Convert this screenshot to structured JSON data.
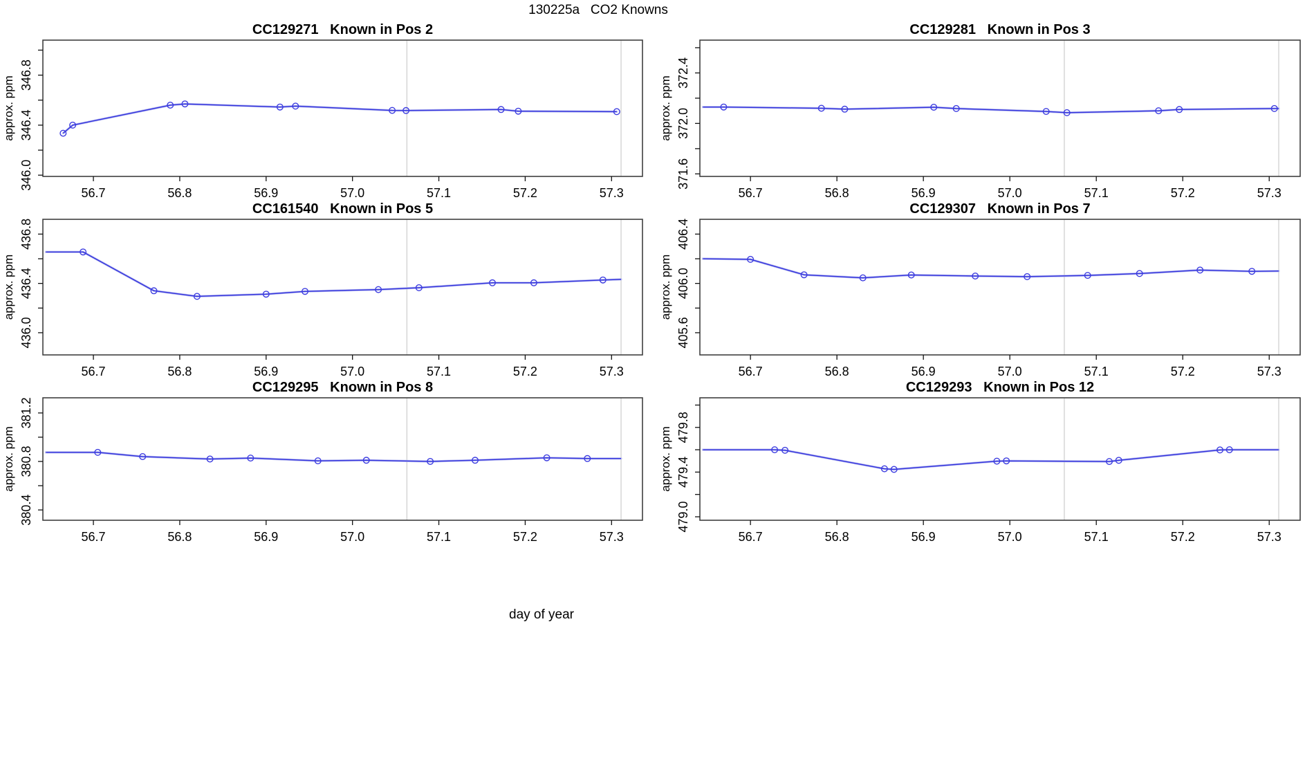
{
  "page": {
    "main_title": "130225a   CO2 Knowns",
    "x_axis_label": "day of year",
    "background": "#ffffff"
  },
  "colors": {
    "line": "#3434dd",
    "line_halo": "#b9bdf0",
    "marker": "#3c3ce0",
    "reference_line": "#d6d6d6",
    "box": "#3f3f3f",
    "tick": "#111111",
    "text": "#000000"
  },
  "chart_data": {
    "type": "line",
    "x_axis_label": "day of year",
    "x_lim": [
      56.6415,
      57.3358
    ],
    "x_ticks": [
      56.7,
      56.8,
      56.9,
      57.0,
      57.1,
      57.2,
      57.3
    ],
    "x_tick_labels": [
      "56.7",
      "56.8",
      "56.9",
      "57.0",
      "57.1",
      "57.2",
      "57.3"
    ],
    "vlines": [
      57.063,
      57.311
    ],
    "grid": "off",
    "legend": "none",
    "marker_style": "open-circle",
    "plots": [
      {
        "title": "CC129271   Known in Pos 2",
        "ylabel": "approx. ppm",
        "ylim": [
          345.99,
          347.08
        ],
        "yticks": [
          346.0,
          346.2,
          346.4,
          346.6,
          346.8,
          347.0
        ],
        "ytick_labeled_values": [
          346.0,
          346.4,
          346.8
        ],
        "ytick_labels": [
          "346.0",
          "346.4",
          "346.8"
        ],
        "x": [
          56.665,
          56.676,
          56.789,
          56.806,
          56.916,
          56.934,
          57.046,
          57.062,
          57.172,
          57.192,
          57.306
        ],
        "y": [
          346.335,
          346.4,
          346.56,
          346.57,
          346.545,
          346.552,
          346.518,
          346.517,
          346.525,
          346.512,
          346.508
        ],
        "line_x": [
          56.665,
          56.676,
          56.789,
          56.806,
          56.916,
          56.934,
          57.046,
          57.062,
          57.172,
          57.192,
          57.306
        ],
        "line_y": [
          346.335,
          346.4,
          346.56,
          346.57,
          346.545,
          346.552,
          346.518,
          346.517,
          346.525,
          346.512,
          346.508
        ]
      },
      {
        "title": "CC129281   Known in Pos 3",
        "ylabel": "approx. ppm",
        "ylim": [
          371.58,
          372.66
        ],
        "yticks": [
          371.6,
          371.8,
          372.0,
          372.2,
          372.4,
          372.6
        ],
        "ytick_labeled_values": [
          371.6,
          372.0,
          372.4
        ],
        "ytick_labels": [
          "371.6",
          "372.0",
          "372.4"
        ],
        "x": [
          56.669,
          56.782,
          56.809,
          56.912,
          56.938,
          57.042,
          57.066,
          57.172,
          57.196,
          57.306
        ],
        "y": [
          372.13,
          372.12,
          372.113,
          372.128,
          372.118,
          372.095,
          372.085,
          372.1,
          372.11,
          372.118
        ],
        "line_x": [
          56.645,
          56.669,
          56.782,
          56.809,
          56.912,
          56.938,
          57.042,
          57.066,
          57.172,
          57.196,
          57.306,
          57.311
        ],
        "line_y": [
          372.13,
          372.13,
          372.12,
          372.113,
          372.128,
          372.118,
          372.095,
          372.085,
          372.1,
          372.11,
          372.118,
          372.118
        ]
      },
      {
        "title": "CC161540   Known in Pos 5",
        "ylabel": "approx. ppm",
        "ylim": [
          435.82,
          436.92
        ],
        "yticks": [
          436.0,
          436.2,
          436.4,
          436.6,
          436.8
        ],
        "ytick_labeled_values": [
          436.0,
          436.4,
          436.8
        ],
        "ytick_labels": [
          "436.0",
          "436.4",
          "436.8"
        ],
        "x": [
          56.688,
          56.77,
          56.82,
          56.9,
          56.945,
          57.03,
          57.077,
          57.162,
          57.21,
          57.29
        ],
        "y": [
          436.655,
          436.34,
          436.295,
          436.313,
          436.335,
          436.35,
          436.365,
          436.405,
          436.405,
          436.428
        ],
        "line_x": [
          56.645,
          56.688,
          56.77,
          56.82,
          56.9,
          56.945,
          57.03,
          57.077,
          57.162,
          57.21,
          57.29,
          57.311
        ],
        "line_y": [
          436.655,
          436.655,
          436.34,
          436.295,
          436.313,
          436.335,
          436.35,
          436.365,
          436.405,
          436.405,
          436.428,
          436.433
        ]
      },
      {
        "title": "CC129307   Known in Pos 7",
        "ylabel": "approx. ppm",
        "ylim": [
          405.42,
          406.52
        ],
        "yticks": [
          405.6,
          405.8,
          406.0,
          406.2,
          406.4
        ],
        "ytick_labeled_values": [
          405.6,
          406.0,
          406.4
        ],
        "ytick_labels": [
          "405.6",
          "406.0",
          "406.4"
        ],
        "x": [
          56.7,
          56.762,
          56.83,
          56.886,
          56.96,
          57.02,
          57.09,
          57.15,
          57.22,
          57.28
        ],
        "y": [
          406.195,
          406.07,
          406.045,
          406.068,
          406.06,
          406.055,
          406.065,
          406.08,
          406.108,
          406.098
        ],
        "line_x": [
          56.645,
          56.7,
          56.762,
          56.83,
          56.886,
          56.96,
          57.02,
          57.09,
          57.15,
          57.22,
          57.28,
          57.311
        ],
        "line_y": [
          406.2,
          406.195,
          406.07,
          406.045,
          406.068,
          406.06,
          406.055,
          406.065,
          406.08,
          406.108,
          406.098,
          406.1
        ]
      },
      {
        "title": "CC129295   Known in Pos 8",
        "ylabel": "approx. ppm",
        "ylim": [
          380.315,
          381.325
        ],
        "yticks": [
          380.4,
          380.6,
          380.8,
          381.0,
          381.2
        ],
        "ytick_labeled_values": [
          380.4,
          380.8,
          381.2
        ],
        "ytick_labels": [
          "380.4",
          "380.8",
          "381.2"
        ],
        "x": [
          56.705,
          56.757,
          56.835,
          56.882,
          56.96,
          57.016,
          57.09,
          57.142,
          57.225,
          57.272
        ],
        "y": [
          380.875,
          380.84,
          380.82,
          380.828,
          380.805,
          380.81,
          380.8,
          380.81,
          380.83,
          380.824
        ],
        "line_x": [
          56.645,
          56.705,
          56.757,
          56.835,
          56.882,
          56.96,
          57.016,
          57.09,
          57.142,
          57.225,
          57.272,
          57.311
        ],
        "line_y": [
          380.875,
          380.875,
          380.84,
          380.82,
          380.828,
          380.805,
          380.81,
          380.8,
          380.81,
          380.83,
          380.824,
          380.824
        ]
      },
      {
        "title": "CC129293   Known in Pos 12",
        "ylabel": "approx. ppm",
        "ylim": [
          478.969,
          480.065
        ],
        "yticks": [
          479.0,
          479.2,
          479.4,
          479.6,
          479.8,
          480.0
        ],
        "ytick_labeled_values": [
          479.0,
          479.4,
          479.8
        ],
        "ytick_labels": [
          "479.0",
          "479.4",
          "479.8"
        ],
        "x": [
          56.728,
          56.74,
          56.855,
          56.866,
          56.985,
          56.996,
          57.115,
          57.126,
          57.243,
          57.254
        ],
        "y": [
          479.6,
          479.595,
          479.43,
          479.424,
          479.498,
          479.5,
          479.495,
          479.505,
          479.598,
          479.6
        ],
        "line_x": [
          56.645,
          56.728,
          56.74,
          56.855,
          56.866,
          56.985,
          56.996,
          57.115,
          57.126,
          57.243,
          57.254,
          57.311
        ],
        "line_y": [
          479.6,
          479.6,
          479.595,
          479.43,
          479.424,
          479.498,
          479.5,
          479.495,
          479.505,
          479.598,
          479.6,
          479.6
        ]
      }
    ]
  }
}
